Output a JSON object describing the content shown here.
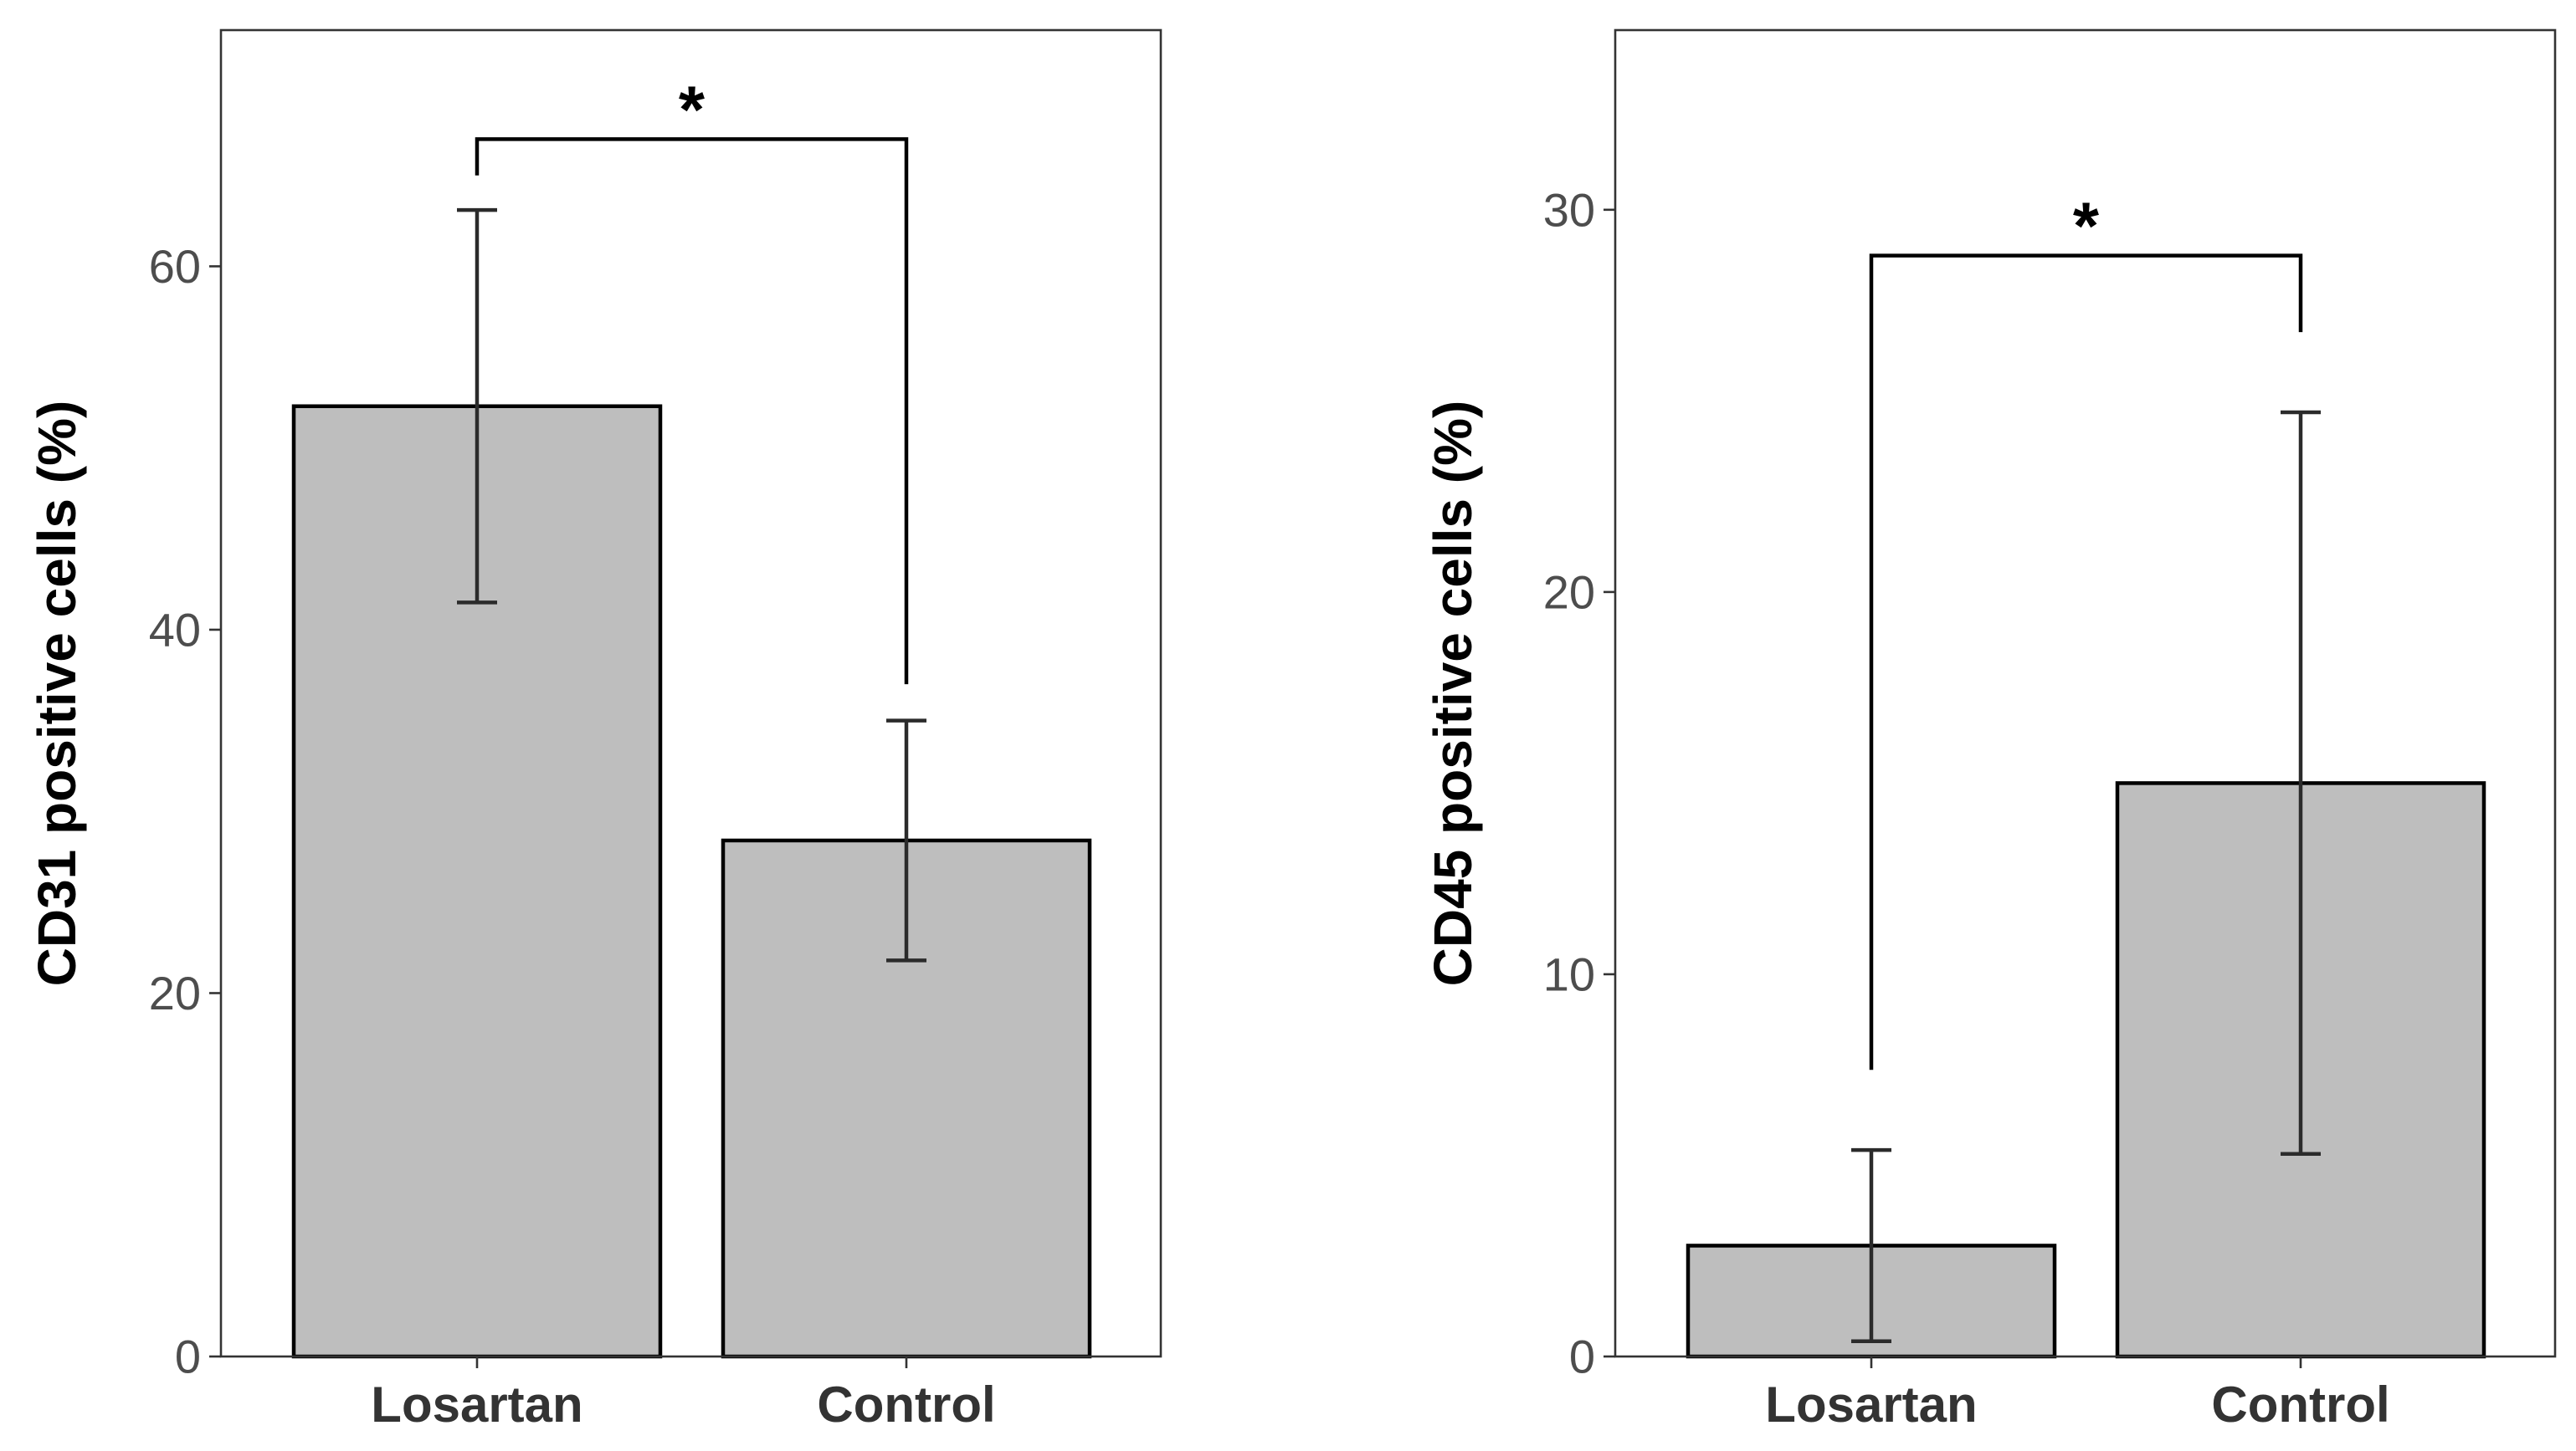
{
  "chart_data": [
    {
      "type": "bar",
      "categories": [
        "Losartan",
        "Control"
      ],
      "values": [
        52.3,
        28.4
      ],
      "error": [
        [
          41.5,
          63.1
        ],
        [
          21.8,
          35.0
        ]
      ],
      "xlabel": "",
      "ylabel": "CD31 positive cells (%)",
      "ylim": [
        0,
        73
      ],
      "yticks": [
        0,
        20,
        40,
        60
      ],
      "significance": {
        "between": [
          "Losartan",
          "Control"
        ],
        "label": "*",
        "level": 67,
        "left_end": 65,
        "right_end": 37
      },
      "grid": false
    },
    {
      "type": "bar",
      "categories": [
        "Losartan",
        "Control"
      ],
      "values": [
        2.9,
        15.0
      ],
      "error": [
        [
          0.4,
          5.4
        ],
        [
          5.3,
          24.7
        ]
      ],
      "xlabel": "",
      "ylabel": "CD45 positive cells (%)",
      "ylim": [
        0,
        34.7
      ],
      "yticks": [
        0,
        10,
        20,
        30
      ],
      "significance": {
        "between": [
          "Losartan",
          "Control"
        ],
        "label": "*",
        "level": 28.8,
        "left_end": 7.5,
        "right_end": 26.8
      },
      "grid": false
    }
  ],
  "colors": {
    "bar_fill": "#bebebe",
    "bar_stroke": "#000000",
    "text": "#333333"
  }
}
